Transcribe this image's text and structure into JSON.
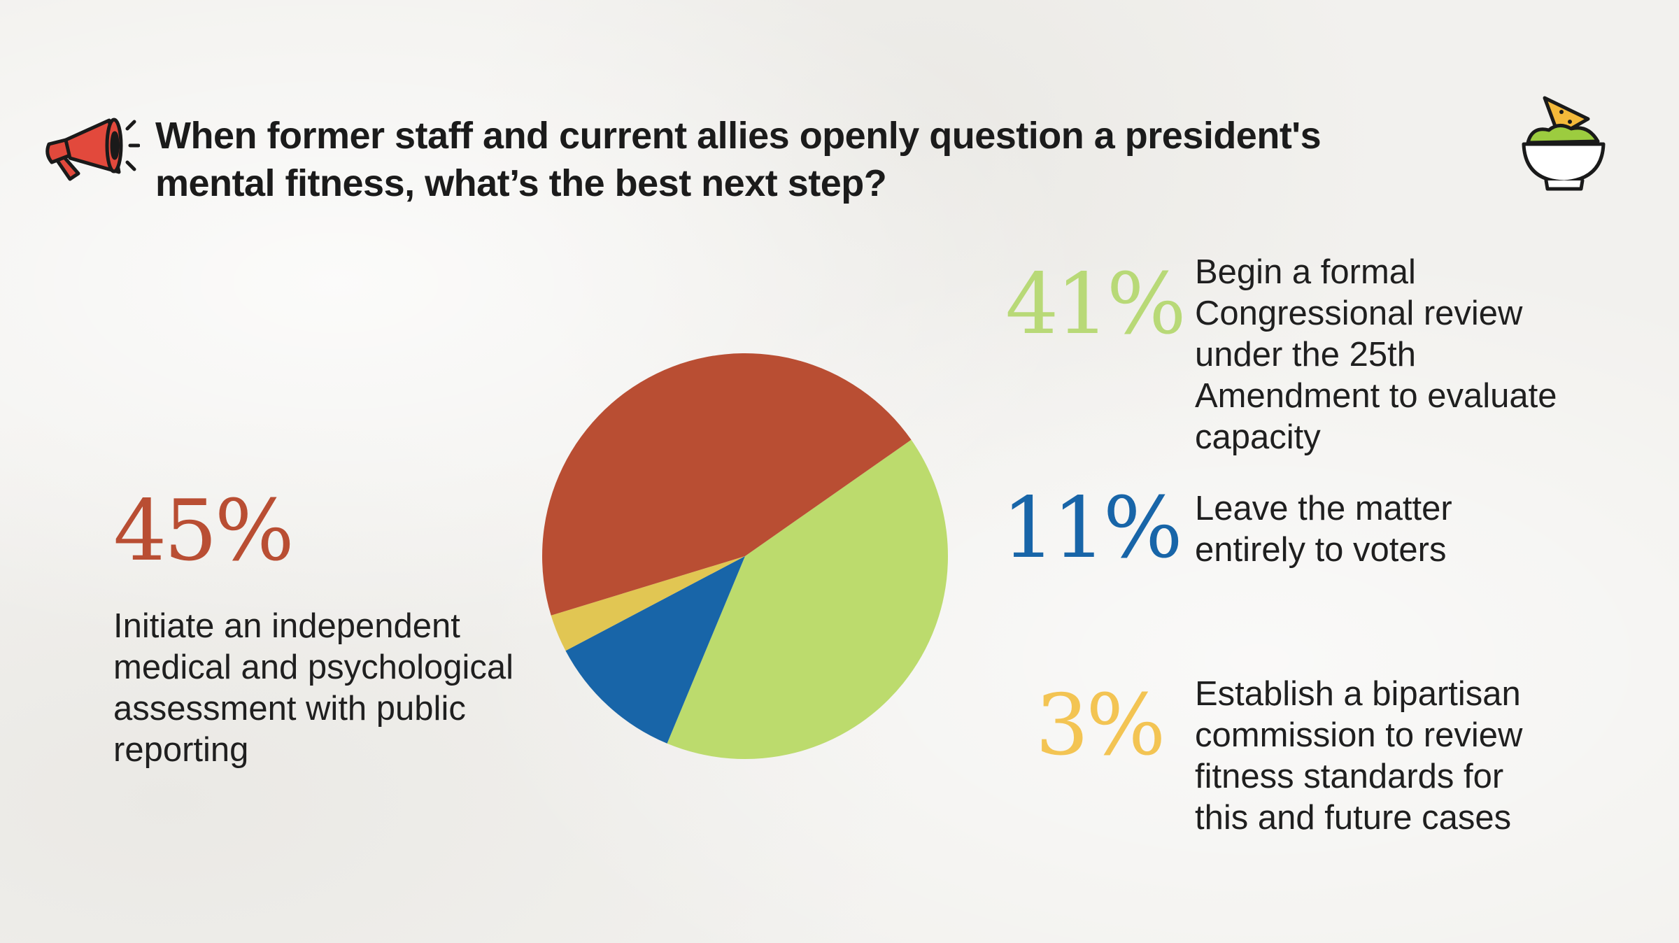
{
  "title": "When former staff and current allies openly question a president's mental fitness, what’s the best next step?",
  "colors": {
    "green": "#bcdb6d",
    "blue": "#1865a8",
    "yellow": "#e1c653",
    "red": "#b94e33",
    "yellow_text": "#f3c453",
    "green_text": "#b8d977"
  },
  "icons": {
    "left": "megaphone-icon",
    "right": "guacamole-bowl-icon"
  },
  "chart_data": {
    "type": "pie",
    "slices": [
      {
        "label": "Begin a formal Congressional review under the 25th Amendment to evaluate capacity",
        "value": 41,
        "display": "41%",
        "color": "#bcdb6d"
      },
      {
        "label": "Leave the matter entirely to voters",
        "value": 11,
        "display": "11%",
        "color": "#1865a8"
      },
      {
        "label": "Establish a bipartisan commission to review fitness standards for this and future cases",
        "value": 3,
        "display": "3%",
        "color": "#e1c653"
      },
      {
        "label": "Initiate an independent medical and psychological assessment with public reporting",
        "value": 45,
        "display": "45%",
        "color": "#b94e33"
      }
    ],
    "start_angle_deg": -35,
    "direction": "clockwise"
  }
}
